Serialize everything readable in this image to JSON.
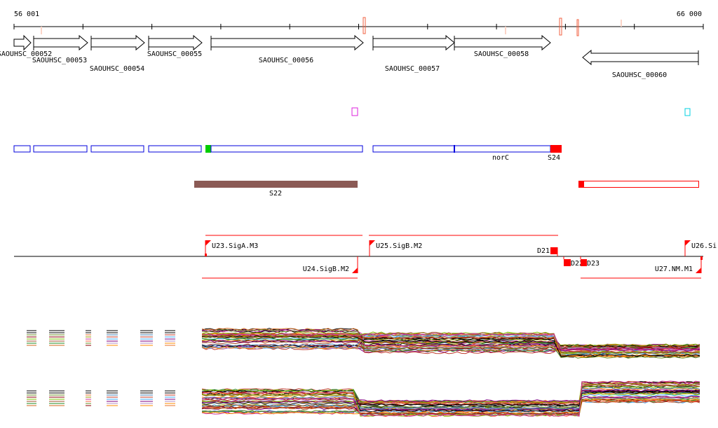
{
  "ruler": {
    "start_label": "56 001",
    "end_label": "66 000"
  },
  "genes": [
    {
      "name": "SAOUHSC_00052",
      "strand": "+"
    },
    {
      "name": "SAOUHSC_00053",
      "strand": "+"
    },
    {
      "name": "SAOUHSC_00054",
      "strand": "+"
    },
    {
      "name": "SAOUHSC_00055",
      "strand": "+"
    },
    {
      "name": "SAOUHSC_00056",
      "strand": "+"
    },
    {
      "name": "SAOUHSC_00057",
      "strand": "+"
    },
    {
      "name": "SAOUHSC_00058",
      "strand": "+"
    },
    {
      "name": "SAOUHSC_00060",
      "strand": "-"
    }
  ],
  "features": {
    "norC": "norC",
    "S24": "S24",
    "S22": "S22"
  },
  "promoters": {
    "U23": "U23.SigA.M3",
    "U24": "U24.SigB.M2",
    "U25": "U25.SigB.M2",
    "U26": "U26.Si",
    "U27": "U27.NM.M1",
    "D21": "D21",
    "D22": "D22",
    "D23": "D23"
  },
  "colors": {
    "gene_box": "#0000dd",
    "accent": "#ff0000",
    "sRNA": "#8b5a55",
    "orf_start": "#00cc00"
  },
  "expression_palette": [
    "#e8702a",
    "#c0392b",
    "#7fbf00",
    "#999900",
    "#3fa9f5",
    "#a0522d",
    "#cc3399",
    "#800080",
    "#228b22",
    "#ff6347",
    "#b58fc7",
    "#d2691e",
    "#6b8e23",
    "#ff8c00",
    "#4682b4",
    "#8b0000"
  ]
}
